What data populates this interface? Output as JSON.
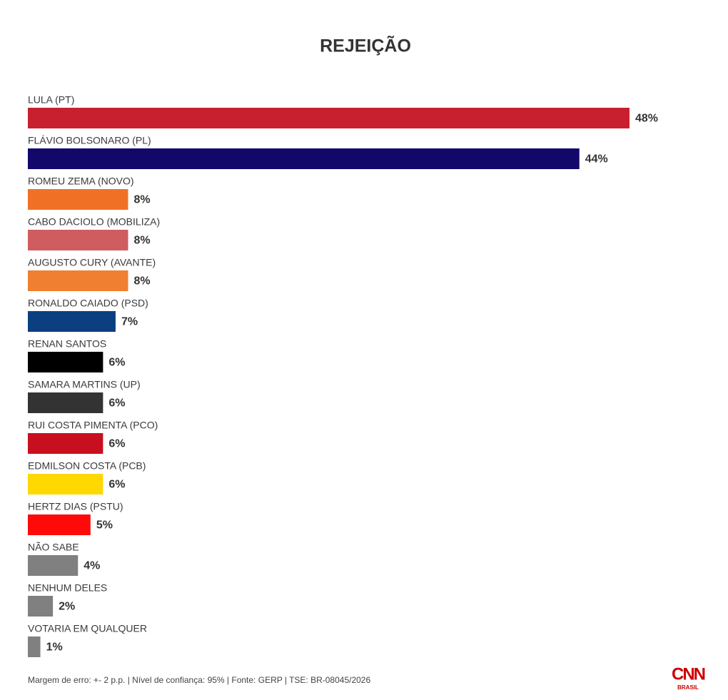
{
  "chart_data": {
    "type": "bar",
    "orientation": "horizontal",
    "title": "REJEIÇÃO",
    "categories": [
      "LULA (PT)",
      "FLÁVIO BOLSONARO (PL)",
      "ROMEU ZEMA (NOVO)",
      "CABO DACIOLO (MOBILIZA)",
      "AUGUSTO CURY (AVANTE)",
      "RONALDO CAIADO (PSD)",
      "RENAN SANTOS",
      "SAMARA MARTINS (UP)",
      "RUI COSTA PIMENTA (PCO)",
      "EDMILSON COSTA (PCB)",
      "HERTZ DIAS (PSTU)",
      "NÃO SABE",
      "NENHUM DELES",
      "VOTARIA EM QUALQUER"
    ],
    "values": [
      48,
      44,
      8,
      8,
      8,
      7,
      6,
      6,
      6,
      6,
      5,
      4,
      2,
      1
    ],
    "value_labels": [
      "48%",
      "44%",
      "8%",
      "8%",
      "8%",
      "7%",
      "6%",
      "6%",
      "6%",
      "6%",
      "5%",
      "4%",
      "2%",
      "1%"
    ],
    "colors": [
      "#c8202f",
      "#12076a",
      "#f07125",
      "#cf5c5e",
      "#f07f31",
      "#0b3f80",
      "#000000",
      "#333333",
      "#c80f1f",
      "#ffd800",
      "#ff0a0a",
      "#808080",
      "#808080",
      "#808080"
    ],
    "footnote": "Margem de erro: +- 2 p.p. | Nível de confiança: 95% | Fonte: GERP | TSE: BR-08045/2026",
    "logo": {
      "text": "CNN",
      "subtext": "BRASIL"
    }
  }
}
